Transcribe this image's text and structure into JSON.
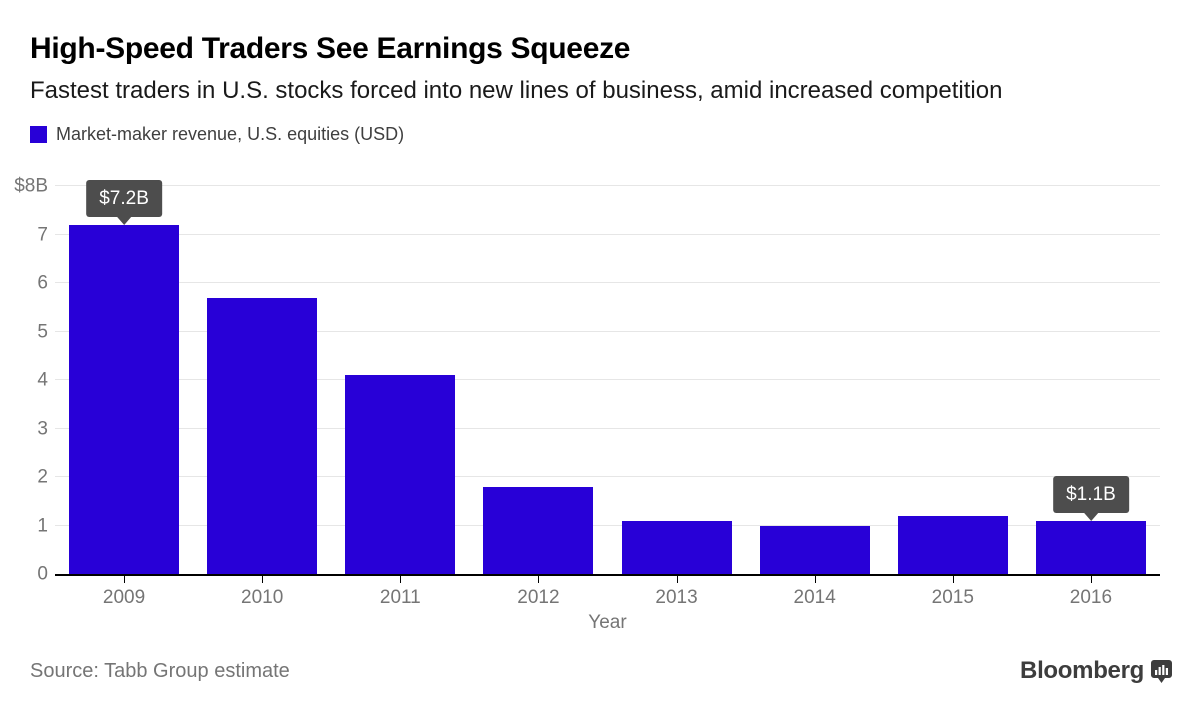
{
  "header": {
    "title": "High-Speed Traders See Earnings Squeeze",
    "subtitle": "Fastest traders in U.S. stocks forced into new lines of business, amid increased competition"
  },
  "legend": {
    "label": "Market-maker revenue, U.S. equities (USD)"
  },
  "chart_data": {
    "type": "bar",
    "title": "Market-maker revenue, U.S. equities (USD)",
    "categories": [
      "2009",
      "2010",
      "2011",
      "2012",
      "2013",
      "2014",
      "2015",
      "2016"
    ],
    "values": [
      7.2,
      5.7,
      4.1,
      1.8,
      1.1,
      1.0,
      1.2,
      1.1
    ],
    "xlabel": "Year",
    "ylabel": "",
    "ylim": [
      0,
      8
    ],
    "ytick_labels": [
      "0",
      "1",
      "2",
      "3",
      "4",
      "5",
      "6",
      "7",
      "$8B"
    ],
    "grid": true,
    "legend_position": "top-left",
    "callouts": [
      {
        "index": 0,
        "label": "$7.2B"
      },
      {
        "index": 7,
        "label": "$1.1B"
      }
    ]
  },
  "footer": {
    "source": "Source: Tabb Group estimate",
    "brand": "Bloomberg"
  },
  "colors": {
    "bar": "#2800d7",
    "callout_bg": "#4d4d4d",
    "callout_text": "#ffffff",
    "gridline": "#e6e6e6",
    "axis_line": "#000000",
    "tick_label": "#757575",
    "title": "#000000",
    "subtitle": "#1a1a1a",
    "legend_text": "#3f3f3f",
    "source_text": "#757575",
    "brand_text": "#3d3d3d"
  }
}
